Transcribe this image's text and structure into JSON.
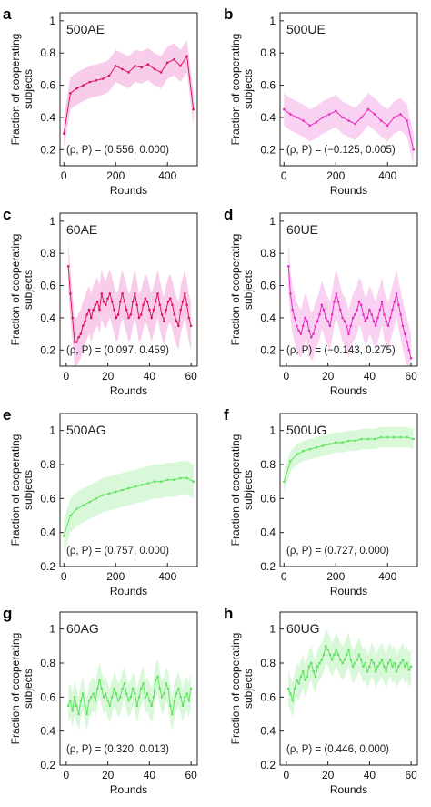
{
  "chart_data": [
    {
      "type": "line",
      "panel": "a",
      "label": "500AE",
      "stat": "(ρ, P) = (0.556, 0.000)",
      "color": "#e0145c",
      "band_color": "#f7c8ea",
      "xlabel": "Rounds",
      "ylabel": "Fraction of cooperating subjects",
      "xlim": [
        -15,
        515
      ],
      "xticks": [
        0,
        200,
        400
      ],
      "ylim": [
        0.1,
        1.05
      ],
      "yticks": [
        0.2,
        0.4,
        0.6,
        0.8,
        1
      ],
      "x": [
        0,
        25,
        50,
        75,
        100,
        125,
        150,
        175,
        200,
        225,
        250,
        275,
        300,
        325,
        350,
        375,
        400,
        425,
        450,
        475,
        500
      ],
      "y": [
        0.3,
        0.55,
        0.58,
        0.6,
        0.62,
        0.63,
        0.64,
        0.66,
        0.72,
        0.7,
        0.68,
        0.72,
        0.71,
        0.73,
        0.7,
        0.68,
        0.74,
        0.76,
        0.72,
        0.78,
        0.45
      ],
      "band": 0.1
    },
    {
      "type": "line",
      "panel": "b",
      "label": "500UE",
      "stat": "(ρ, P) = (−0.125, 0.005)",
      "color": "#e62bc2",
      "band_color": "#f9cdf0",
      "xlabel": "Rounds",
      "ylabel": "Fraction of cooperating subjects",
      "xlim": [
        -15,
        515
      ],
      "xticks": [
        0,
        200,
        400
      ],
      "ylim": [
        0.1,
        1.05
      ],
      "yticks": [
        0.2,
        0.4,
        0.6,
        0.8,
        1
      ],
      "x": [
        0,
        25,
        50,
        75,
        100,
        125,
        150,
        175,
        200,
        225,
        250,
        275,
        300,
        325,
        350,
        375,
        400,
        425,
        450,
        475,
        500
      ],
      "y": [
        0.45,
        0.42,
        0.4,
        0.38,
        0.35,
        0.37,
        0.4,
        0.42,
        0.44,
        0.4,
        0.38,
        0.36,
        0.4,
        0.45,
        0.42,
        0.38,
        0.35,
        0.4,
        0.42,
        0.38,
        0.2
      ],
      "band": 0.1
    },
    {
      "type": "line",
      "panel": "c",
      "label": "60AE",
      "stat": "(ρ, P) = (0.097, 0.459)",
      "color": "#e0145c",
      "band_color": "#f7c8ea",
      "xlabel": "Rounds",
      "ylabel": "Fraction of cooperating subjects",
      "xlim": [
        -3,
        63
      ],
      "xticks": [
        0,
        20,
        40,
        60
      ],
      "ylim": [
        0.1,
        1.05
      ],
      "yticks": [
        0.2,
        0.4,
        0.6,
        0.8,
        1
      ],
      "x": [
        1,
        2,
        3,
        4,
        5,
        6,
        7,
        8,
        9,
        10,
        11,
        12,
        13,
        14,
        15,
        16,
        17,
        18,
        19,
        20,
        21,
        22,
        23,
        24,
        25,
        26,
        27,
        28,
        29,
        30,
        31,
        32,
        33,
        34,
        35,
        36,
        37,
        38,
        39,
        40,
        41,
        42,
        43,
        44,
        45,
        46,
        47,
        48,
        49,
        50,
        51,
        52,
        53,
        54,
        55,
        56,
        57,
        58,
        59,
        60
      ],
      "y": [
        0.72,
        0.55,
        0.4,
        0.25,
        0.25,
        0.28,
        0.3,
        0.35,
        0.38,
        0.42,
        0.45,
        0.4,
        0.45,
        0.48,
        0.5,
        0.45,
        0.55,
        0.5,
        0.48,
        0.52,
        0.55,
        0.5,
        0.45,
        0.4,
        0.42,
        0.5,
        0.55,
        0.5,
        0.45,
        0.4,
        0.42,
        0.5,
        0.55,
        0.48,
        0.4,
        0.42,
        0.48,
        0.52,
        0.5,
        0.45,
        0.4,
        0.45,
        0.5,
        0.55,
        0.48,
        0.42,
        0.38,
        0.45,
        0.5,
        0.52,
        0.48,
        0.42,
        0.38,
        0.35,
        0.45,
        0.5,
        0.55,
        0.48,
        0.4,
        0.35
      ],
      "band": 0.15
    },
    {
      "type": "line",
      "panel": "d",
      "label": "60UE",
      "stat": "(ρ, P) = (−0.143, 0.275)",
      "color": "#e62bc2",
      "band_color": "#f9cdf0",
      "xlabel": "Rounds",
      "ylabel": "Fraction of cooperating subjects",
      "xlim": [
        -3,
        63
      ],
      "xticks": [
        0,
        20,
        40,
        60
      ],
      "ylim": [
        0.1,
        1.05
      ],
      "yticks": [
        0.2,
        0.4,
        0.6,
        0.8,
        1
      ],
      "x": [
        1,
        2,
        3,
        4,
        5,
        6,
        7,
        8,
        9,
        10,
        11,
        12,
        13,
        14,
        15,
        16,
        17,
        18,
        19,
        20,
        21,
        22,
        23,
        24,
        25,
        26,
        27,
        28,
        29,
        30,
        31,
        32,
        33,
        34,
        35,
        36,
        37,
        38,
        39,
        40,
        41,
        42,
        43,
        44,
        45,
        46,
        47,
        48,
        49,
        50,
        51,
        52,
        53,
        54,
        55,
        56,
        57,
        58,
        59,
        60
      ],
      "y": [
        0.72,
        0.55,
        0.45,
        0.4,
        0.35,
        0.32,
        0.3,
        0.35,
        0.4,
        0.38,
        0.32,
        0.28,
        0.3,
        0.35,
        0.38,
        0.42,
        0.48,
        0.45,
        0.4,
        0.38,
        0.35,
        0.42,
        0.5,
        0.55,
        0.5,
        0.45,
        0.4,
        0.38,
        0.35,
        0.3,
        0.35,
        0.4,
        0.42,
        0.45,
        0.5,
        0.48,
        0.42,
        0.38,
        0.4,
        0.45,
        0.42,
        0.38,
        0.35,
        0.4,
        0.45,
        0.5,
        0.42,
        0.38,
        0.35,
        0.4,
        0.45,
        0.5,
        0.55,
        0.48,
        0.42,
        0.35,
        0.3,
        0.25,
        0.2,
        0.15
      ],
      "band": 0.15
    },
    {
      "type": "line",
      "panel": "e",
      "label": "500AG",
      "stat": "(ρ, P) = (0.757, 0.000)",
      "color": "#5fe35f",
      "band_color": "#d5f7d5",
      "xlabel": "Rounds",
      "ylabel": "Fraction of cooperating subjects",
      "xlim": [
        -15,
        515
      ],
      "xticks": [
        0,
        200,
        400
      ],
      "ylim": [
        0.2,
        1.1
      ],
      "yticks": [
        0.2,
        0.4,
        0.6,
        0.8,
        1
      ],
      "x": [
        0,
        25,
        50,
        75,
        100,
        125,
        150,
        175,
        200,
        225,
        250,
        275,
        300,
        325,
        350,
        375,
        400,
        425,
        450,
        475,
        500
      ],
      "y": [
        0.38,
        0.5,
        0.54,
        0.56,
        0.58,
        0.6,
        0.62,
        0.63,
        0.64,
        0.65,
        0.66,
        0.67,
        0.68,
        0.69,
        0.7,
        0.7,
        0.71,
        0.71,
        0.72,
        0.72,
        0.7
      ],
      "band": 0.1
    },
    {
      "type": "line",
      "panel": "f",
      "label": "500UG",
      "stat": "(ρ, P) = (0.727, 0.000)",
      "color": "#5fe35f",
      "band_color": "#d5f7d5",
      "xlabel": "Rounds",
      "ylabel": "Fraction of cooperating subjects",
      "xlim": [
        -15,
        515
      ],
      "xticks": [
        0,
        200,
        400
      ],
      "ylim": [
        0.2,
        1.1
      ],
      "yticks": [
        0.2,
        0.4,
        0.6,
        0.8,
        1
      ],
      "x": [
        0,
        25,
        50,
        75,
        100,
        125,
        150,
        175,
        200,
        225,
        250,
        275,
        300,
        325,
        350,
        375,
        400,
        425,
        450,
        475,
        500
      ],
      "y": [
        0.7,
        0.82,
        0.86,
        0.88,
        0.89,
        0.9,
        0.91,
        0.92,
        0.93,
        0.93,
        0.94,
        0.94,
        0.95,
        0.95,
        0.95,
        0.96,
        0.96,
        0.96,
        0.96,
        0.96,
        0.95
      ],
      "band": 0.06
    },
    {
      "type": "line",
      "panel": "g",
      "label": "60AG",
      "stat": "(ρ, P) = (0.320, 0.013)",
      "color": "#5fe35f",
      "band_color": "#d5f7d5",
      "xlabel": "Rounds",
      "ylabel": "Fraction of cooperating subjects",
      "xlim": [
        -3,
        63
      ],
      "xticks": [
        0,
        20,
        40,
        60
      ],
      "ylim": [
        0.2,
        1.1
      ],
      "yticks": [
        0.2,
        0.4,
        0.6,
        0.8,
        1
      ],
      "x": [
        1,
        2,
        3,
        4,
        5,
        6,
        7,
        8,
        9,
        10,
        11,
        12,
        13,
        14,
        15,
        16,
        17,
        18,
        19,
        20,
        21,
        22,
        23,
        24,
        25,
        26,
        27,
        28,
        29,
        30,
        31,
        32,
        33,
        34,
        35,
        36,
        37,
        38,
        39,
        40,
        41,
        42,
        43,
        44,
        45,
        46,
        47,
        48,
        49,
        50,
        51,
        52,
        53,
        54,
        55,
        56,
        57,
        58,
        59,
        60
      ],
      "y": [
        0.55,
        0.58,
        0.52,
        0.6,
        0.55,
        0.5,
        0.58,
        0.62,
        0.55,
        0.5,
        0.58,
        0.6,
        0.62,
        0.58,
        0.65,
        0.7,
        0.65,
        0.6,
        0.62,
        0.58,
        0.55,
        0.6,
        0.65,
        0.62,
        0.58,
        0.6,
        0.65,
        0.68,
        0.62,
        0.58,
        0.6,
        0.65,
        0.62,
        0.55,
        0.6,
        0.65,
        0.68,
        0.6,
        0.62,
        0.58,
        0.55,
        0.6,
        0.7,
        0.72,
        0.65,
        0.6,
        0.62,
        0.68,
        0.65,
        0.55,
        0.5,
        0.58,
        0.62,
        0.65,
        0.6,
        0.55,
        0.6,
        0.62,
        0.58,
        0.65
      ],
      "band": 0.1
    },
    {
      "type": "line",
      "panel": "h",
      "label": "60UG",
      "stat": "(ρ, P) = (0.446, 0.000)",
      "color": "#5fe35f",
      "band_color": "#d5f7d5",
      "xlabel": "Rounds",
      "ylabel": "Fraction of cooperating subjects",
      "xlim": [
        -3,
        63
      ],
      "xticks": [
        0,
        20,
        40,
        60
      ],
      "ylim": [
        0.2,
        1.1
      ],
      "yticks": [
        0.2,
        0.4,
        0.6,
        0.8,
        1
      ],
      "x": [
        1,
        2,
        3,
        4,
        5,
        6,
        7,
        8,
        9,
        10,
        11,
        12,
        13,
        14,
        15,
        16,
        17,
        18,
        19,
        20,
        21,
        22,
        23,
        24,
        25,
        26,
        27,
        28,
        29,
        30,
        31,
        32,
        33,
        34,
        35,
        36,
        37,
        38,
        39,
        40,
        41,
        42,
        43,
        44,
        45,
        46,
        47,
        48,
        49,
        50,
        51,
        52,
        53,
        54,
        55,
        56,
        57,
        58,
        59,
        60
      ],
      "y": [
        0.65,
        0.62,
        0.58,
        0.65,
        0.7,
        0.68,
        0.72,
        0.75,
        0.7,
        0.72,
        0.78,
        0.8,
        0.75,
        0.72,
        0.78,
        0.8,
        0.82,
        0.85,
        0.9,
        0.88,
        0.85,
        0.82,
        0.85,
        0.88,
        0.85,
        0.82,
        0.8,
        0.82,
        0.85,
        0.88,
        0.82,
        0.78,
        0.8,
        0.82,
        0.85,
        0.82,
        0.78,
        0.8,
        0.75,
        0.78,
        0.82,
        0.8,
        0.75,
        0.78,
        0.8,
        0.82,
        0.78,
        0.75,
        0.8,
        0.82,
        0.78,
        0.8,
        0.75,
        0.78,
        0.8,
        0.82,
        0.78,
        0.8,
        0.76,
        0.78
      ],
      "band": 0.1
    }
  ]
}
